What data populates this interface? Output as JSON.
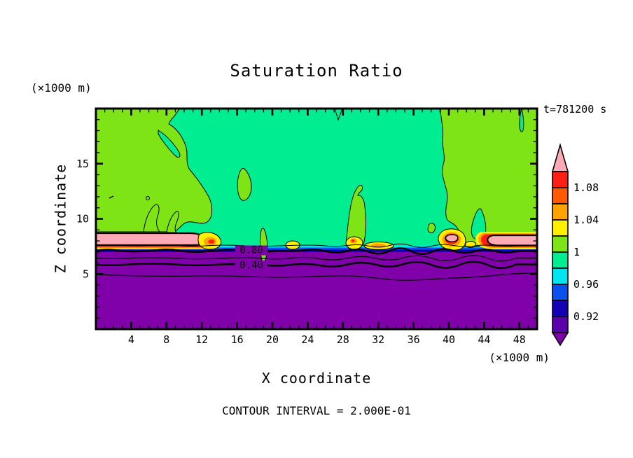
{
  "chart_data": {
    "type": "heatmap",
    "subtype": "filled-contour-with-line-contours",
    "title": "Saturation Ratio",
    "xlabel": "X coordinate",
    "ylabel": "Z coordinate",
    "x_units": "(×1000 m)",
    "y_units": "(×1000 m)",
    "time": "t=781200 s",
    "footer": "CONTOUR INTERVAL = 2.000E-01",
    "xlim": [
      0,
      50
    ],
    "ylim": [
      0,
      20
    ],
    "x_major_ticks": [
      4,
      8,
      12,
      16,
      20,
      24,
      28,
      32,
      36,
      40,
      44,
      48
    ],
    "x_minor_step": 1,
    "y_major_ticks": [
      5,
      10,
      15
    ],
    "y_minor_step": 1,
    "grid": false,
    "fill_levels": [
      0.9,
      0.92,
      0.94,
      0.96,
      0.98,
      1.0,
      1.02,
      1.04,
      1.06,
      1.08,
      1.1
    ],
    "colorbar": {
      "position": "right",
      "over_color": "#FFAAB4",
      "under_color": "#8000AA",
      "cells_top_to_bottom": [
        {
          "color": "#FF2015",
          "range": "1.08-1.10"
        },
        {
          "color": "#FF5A00",
          "range": "1.06-1.08"
        },
        {
          "color": "#FFA300",
          "range": "1.04-1.06"
        },
        {
          "color": "#FFF000",
          "range": "1.02-1.04"
        },
        {
          "color": "#7EE415",
          "range": "1.00-1.02"
        },
        {
          "color": "#00ED92",
          "range": "0.98-1.00"
        },
        {
          "color": "#00E5F0",
          "range": "0.96-0.98"
        },
        {
          "color": "#0A52F0",
          "range": "0.94-0.96"
        },
        {
          "color": "#1500B5",
          "range": "0.92-0.94"
        },
        {
          "color": "#5A00AD",
          "range": "0.90-0.92"
        }
      ],
      "boundary_labels": [
        {
          "text": "1.08",
          "boundary_index_from_top": 1
        },
        {
          "text": "1.04",
          "boundary_index_from_top": 3
        },
        {
          "text": "1",
          "boundary_index_from_top": 5
        },
        {
          "text": "0.96",
          "boundary_index_from_top": 7
        },
        {
          "text": "0.92",
          "boundary_index_from_top": 9
        }
      ]
    },
    "line_contours": {
      "interval": 0.2,
      "labeled_values": [
        "0.80",
        "0.40"
      ],
      "unlabeled_values": [
        "0.60",
        "0.20"
      ]
    },
    "line_labels": [
      {
        "text": "0.80",
        "x": 359,
        "y": 361.5
      },
      {
        "text": "0.40",
        "x": 359,
        "y": 383
      }
    ],
    "field_summary": [
      "Sub-saturated purple layer (S<0.90) fills z≈0-6.5 with horizontal line contours at 0.2,0.4,0.6,0.8",
      "Near-saturated green region (S≈0.98-1.00) fills most of the upper domain",
      "Slightly super-saturated yellow-green (S≈1.00-1.02) areas at top-left, top-right and in rising plumes",
      "Super-saturated pink bands (S>1.10) near z≈7.5 at x<13 and x>44, rimmed by red/orange/yellow",
      "Local super-saturation maxima (yellow/orange/red spots) along z≈7.5 at x≈12,22,29-34,39-43"
    ]
  }
}
